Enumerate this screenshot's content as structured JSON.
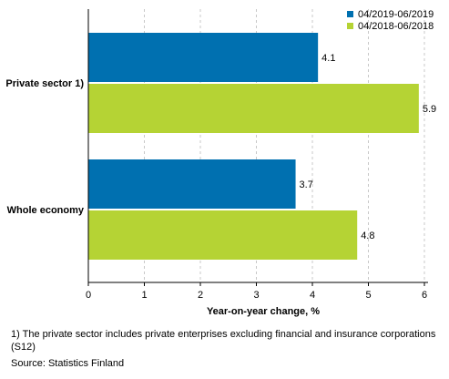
{
  "chart_data": {
    "type": "bar",
    "orientation": "horizontal",
    "categories": [
      "Private sector 1)",
      "Whole economy"
    ],
    "series": [
      {
        "name": "04/2019-06/2019",
        "color": "#0070b0",
        "values": [
          4.1,
          3.7
        ]
      },
      {
        "name": "04/2018-06/2018",
        "color": "#b5d334",
        "values": [
          5.9,
          4.8
        ]
      }
    ],
    "xlabel": "Year-on-year change, %",
    "xlim": [
      0,
      6
    ],
    "xticks": [
      0,
      1,
      2,
      3,
      4,
      5,
      6
    ],
    "grid": "vertical",
    "legend": "top-right"
  },
  "footnote": "1) The private sector includes private enterprises excluding financial and insurance corporations (S12)",
  "source": "Source: Statistics Finland"
}
